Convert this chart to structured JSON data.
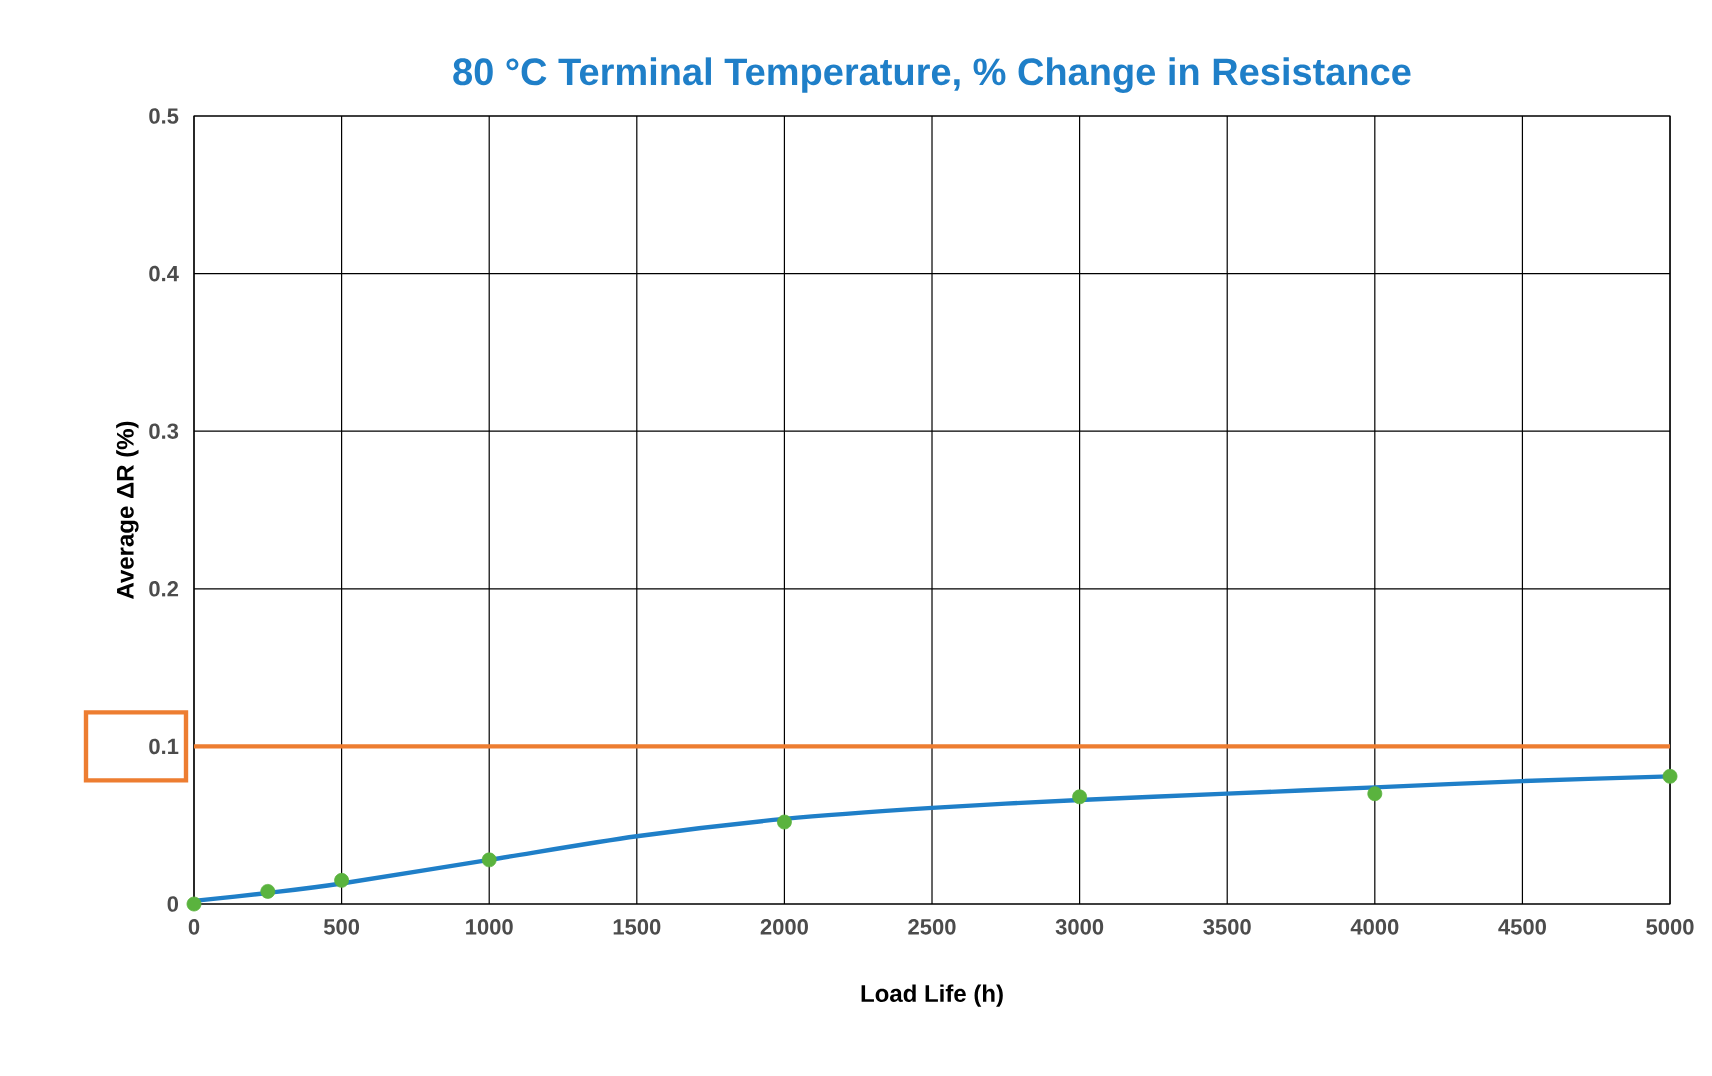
{
  "chart_data": {
    "type": "scatter",
    "title": "80 °C Terminal Temperature, % Change in Resistance",
    "xlabel": "Load Life (h)",
    "ylabel": "Average ΔR (%)",
    "xlim": [
      0,
      5000
    ],
    "ylim": [
      0,
      0.5
    ],
    "xticks": [
      0,
      500,
      1000,
      1500,
      2000,
      2500,
      3000,
      3500,
      4000,
      4500,
      5000
    ],
    "yticks": [
      0,
      0.1,
      0.2,
      0.3,
      0.4,
      0.5
    ],
    "grid": true,
    "series": [
      {
        "type": "line",
        "color": "#1f7fc8",
        "x": [
          0,
          250,
          500,
          1000,
          1500,
          2000,
          2500,
          3000,
          3500,
          4000,
          4500,
          5000
        ],
        "values": [
          0.002,
          0.007,
          0.013,
          0.028,
          0.043,
          0.054,
          0.061,
          0.066,
          0.07,
          0.074,
          0.078,
          0.081
        ]
      },
      {
        "color": "#5ab33e",
        "x": [
          0,
          250,
          500,
          1000,
          2000,
          3000,
          4000,
          5000
        ],
        "values": [
          0,
          0.008,
          0.015,
          0.028,
          0.052,
          0.068,
          0.07,
          0.081
        ]
      }
    ],
    "ref_lines": [
      {
        "axis": "y",
        "value": 0.1,
        "color": "#ed7d31"
      }
    ]
  }
}
